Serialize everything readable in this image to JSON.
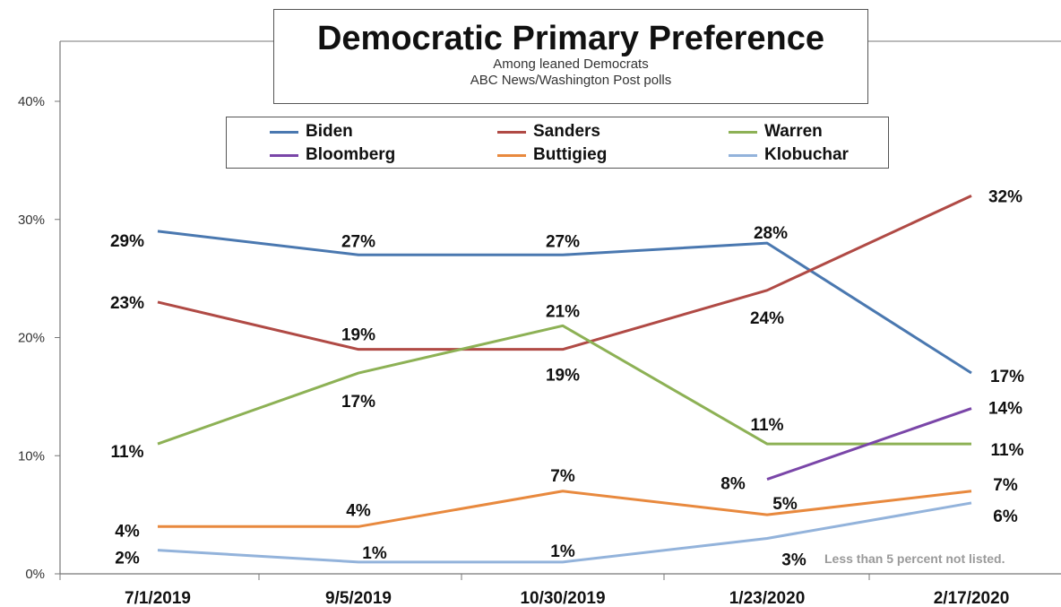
{
  "chart_data": {
    "type": "line",
    "title": "Democratic Primary Preference",
    "subtitle": [
      "Among leaned  Democrats",
      "ABC News/Washington  Post polls"
    ],
    "xlabel": "",
    "ylabel": "",
    "categories": [
      "7/1/2019",
      "9/5/2019",
      "10/30/2019",
      "1/23/2020",
      "2/17/2020"
    ],
    "ylim": [
      0,
      40
    ],
    "yticks": [
      0,
      10,
      20,
      30,
      40
    ],
    "ytick_labels": [
      "0%",
      "10%",
      "20%",
      "30%",
      "40%"
    ],
    "grid": false,
    "legend_position": "top",
    "series": [
      {
        "name": "Biden",
        "color": "#4a78b0",
        "values": [
          29,
          27,
          27,
          28,
          17
        ],
        "labels": [
          "29%",
          "27%",
          "27%",
          "28%",
          "17%"
        ]
      },
      {
        "name": "Sanders",
        "color": "#b04a45",
        "values": [
          23,
          19,
          19,
          24,
          32
        ],
        "labels": [
          "23%",
          "19%",
          "19%",
          "24%",
          "32%"
        ]
      },
      {
        "name": "Warren",
        "color": "#8db155",
        "values": [
          11,
          17,
          21,
          11,
          11
        ],
        "labels": [
          "11%",
          "17%",
          "21%",
          "11%",
          "11%"
        ]
      },
      {
        "name": "Bloomberg",
        "color": "#7a46a8",
        "values": [
          null,
          null,
          null,
          8,
          14
        ],
        "labels": [
          null,
          null,
          null,
          "8%",
          "14%"
        ]
      },
      {
        "name": "Buttigieg",
        "color": "#e8893e",
        "values": [
          4,
          4,
          7,
          5,
          7
        ],
        "labels": [
          "4%",
          "4%",
          "7%",
          "5%",
          "7%"
        ]
      },
      {
        "name": "Klobuchar",
        "color": "#93b3db",
        "values": [
          2,
          1,
          1,
          3,
          6
        ],
        "labels": [
          "2%",
          "1%",
          "1%",
          "3%",
          "6%"
        ]
      }
    ],
    "footnote": "Less than 5 percent not listed."
  }
}
